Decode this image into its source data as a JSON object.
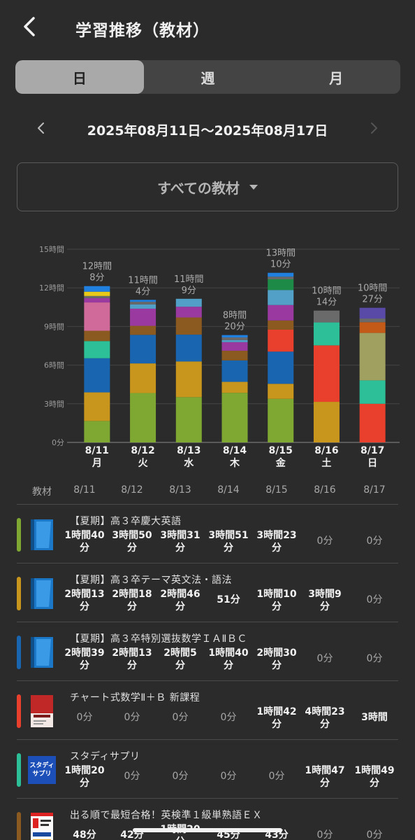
{
  "header": {
    "title": "学習推移（教材）"
  },
  "tabs": [
    {
      "label": "日",
      "active": true
    },
    {
      "label": "週",
      "active": false
    },
    {
      "label": "月",
      "active": false
    }
  ],
  "range": {
    "text": "2025年08月11日〜2025年08月17日"
  },
  "filter": {
    "label": "すべての教材"
  },
  "chart_data": {
    "type": "bar",
    "stacked": true,
    "y_unit": "minutes",
    "ylim": [
      0,
      900
    ],
    "y_ticks": [
      {
        "value": 0,
        "label": "0分"
      },
      {
        "value": 180,
        "label": "3時間"
      },
      {
        "value": 360,
        "label": "6時間"
      },
      {
        "value": 540,
        "label": "9時間"
      },
      {
        "value": 720,
        "label": "12時間"
      },
      {
        "value": 900,
        "label": "15時間"
      }
    ],
    "categories": [
      "8/11",
      "8/12",
      "8/13",
      "8/14",
      "8/15",
      "8/16",
      "8/17"
    ],
    "weekdays": [
      "月",
      "火",
      "水",
      "木",
      "金",
      "土",
      "日"
    ],
    "totals": [
      728,
      664,
      669,
      500,
      790,
      614,
      627
    ],
    "total_labels": [
      [
        "12時間",
        "8分"
      ],
      [
        "11時間",
        "4分"
      ],
      [
        "11時間",
        "9分"
      ],
      [
        "8時間",
        "20分"
      ],
      [
        "13時間",
        "10分"
      ],
      [
        "10時間",
        "14分"
      ],
      [
        "10時間",
        "27分"
      ]
    ],
    "series": [
      {
        "name": "【夏期】高３卒慶大英語",
        "color": "#7fa832",
        "values": [
          100,
          230,
          211,
          231,
          203,
          0,
          0
        ]
      },
      {
        "name": "【夏期】高３卒テーマ英文法・語法",
        "color": "#c8961c",
        "values": [
          133,
          138,
          166,
          51,
          70,
          189,
          0
        ]
      },
      {
        "name": "【夏期】高３卒特別選抜数学ＩＡⅡＢＣ",
        "color": "#1a65b0",
        "values": [
          159,
          133,
          125,
          100,
          150,
          0,
          0
        ]
      },
      {
        "name": "チャート式数学Ⅱ＋Ｂ 新課程",
        "color": "#e8402c",
        "values": [
          0,
          0,
          0,
          0,
          102,
          263,
          180
        ]
      },
      {
        "name": "スタディサプリ",
        "color": "#2cbf98",
        "values": [
          80,
          0,
          0,
          0,
          0,
          107,
          109
        ]
      },
      {
        "name": "出る順で最短合格！英検準１級単熟語ＥＸ",
        "color": "#8a5a20",
        "values": [
          48,
          42,
          80,
          45,
          43,
          0,
          0
        ]
      },
      {
        "name": "",
        "color": "#a0a060",
        "values": [
          0,
          0,
          0,
          0,
          0,
          0,
          221
        ]
      },
      {
        "name": "",
        "color": "#d06a9a",
        "values": [
          132,
          0,
          0,
          0,
          0,
          0,
          0
        ]
      },
      {
        "name": "",
        "color": "#9a3aa0",
        "values": [
          20,
          80,
          50,
          40,
          72,
          0,
          0
        ]
      },
      {
        "name": "",
        "color": "#c35a18",
        "values": [
          0,
          0,
          0,
          0,
          0,
          0,
          50
        ]
      },
      {
        "name": "",
        "color": "#52a0c8",
        "values": [
          0,
          20,
          37,
          10,
          70,
          0,
          0
        ]
      },
      {
        "name": "",
        "color": "#1e8a48",
        "values": [
          0,
          0,
          0,
          0,
          50,
          0,
          0
        ]
      },
      {
        "name": "",
        "color": "#6a6a6a",
        "values": [
          10,
          12,
          0,
          12,
          12,
          55,
          17
        ]
      },
      {
        "name": "",
        "color": "#5a4aa8",
        "values": [
          0,
          0,
          0,
          0,
          0,
          0,
          50
        ]
      },
      {
        "name": "",
        "color": "#e8c818",
        "values": [
          20,
          0,
          0,
          0,
          0,
          0,
          0
        ]
      },
      {
        "name": "",
        "color": "#2080e0",
        "values": [
          26,
          9,
          0,
          11,
          18,
          0,
          0
        ]
      }
    ]
  },
  "table": {
    "header_label": "教材",
    "dates": [
      "8/11",
      "8/12",
      "8/13",
      "8/14",
      "8/15",
      "8/16",
      "8/17"
    ],
    "rows": [
      {
        "title": "【夏期】高３卒慶大英語",
        "color": "#7fa832",
        "thumb": "blue-book-icon",
        "cells": [
          [
            "1時間40",
            "分"
          ],
          [
            "3時間50",
            "分"
          ],
          [
            "3時間31",
            "分"
          ],
          [
            "3時間51",
            "分"
          ],
          [
            "3時間23",
            "分"
          ],
          [
            "0分",
            ""
          ],
          [
            "0分",
            ""
          ]
        ]
      },
      {
        "title": "【夏期】高３卒テーマ英文法・語法",
        "color": "#c8961c",
        "thumb": "blue-book-icon",
        "cells": [
          [
            "2時間13",
            "分"
          ],
          [
            "2時間18",
            "分"
          ],
          [
            "2時間46",
            "分"
          ],
          [
            "51分",
            ""
          ],
          [
            "1時間10",
            "分"
          ],
          [
            "3時間9",
            "分"
          ],
          [
            "0分",
            ""
          ]
        ]
      },
      {
        "title": "【夏期】高３卒特別選抜数学ＩＡⅡＢＣ",
        "color": "#1a65b0",
        "thumb": "blue-book-icon",
        "cells": [
          [
            "2時間39",
            "分"
          ],
          [
            "2時間13",
            "分"
          ],
          [
            "2時間5",
            "分"
          ],
          [
            "1時間40",
            "分"
          ],
          [
            "2時間30",
            "分"
          ],
          [
            "0分",
            ""
          ],
          [
            "0分",
            ""
          ]
        ]
      },
      {
        "title": "チャート式数学Ⅱ＋Ｂ 新課程",
        "color": "#e8402c",
        "thumb": "chart-book-cover",
        "cells": [
          [
            "0分",
            ""
          ],
          [
            "0分",
            ""
          ],
          [
            "0分",
            ""
          ],
          [
            "0分",
            ""
          ],
          [
            "1時間42",
            "分"
          ],
          [
            "4時間23",
            "分"
          ],
          [
            "3時間",
            ""
          ]
        ]
      },
      {
        "title": "スタディサプリ",
        "color": "#2cbf98",
        "thumb": "studysapuri-logo",
        "logo_text": [
          "スタディ",
          "サプリ"
        ],
        "cells": [
          [
            "1時間20",
            "分"
          ],
          [
            "0分",
            ""
          ],
          [
            "0分",
            ""
          ],
          [
            "0分",
            ""
          ],
          [
            "0分",
            ""
          ],
          [
            "1時間47",
            "分"
          ],
          [
            "1時間49",
            "分"
          ]
        ]
      },
      {
        "title": "出る順で最短合格！英検準１級単熟語ＥＸ",
        "color": "#8a5a20",
        "thumb": "eiken-book-cover",
        "cells": [
          [
            "48分",
            ""
          ],
          [
            "42分",
            ""
          ],
          [
            "1時間20",
            "分"
          ],
          [
            "45分",
            ""
          ],
          [
            "43分",
            ""
          ],
          [
            "0分",
            ""
          ],
          [
            "0分",
            ""
          ]
        ]
      }
    ]
  }
}
